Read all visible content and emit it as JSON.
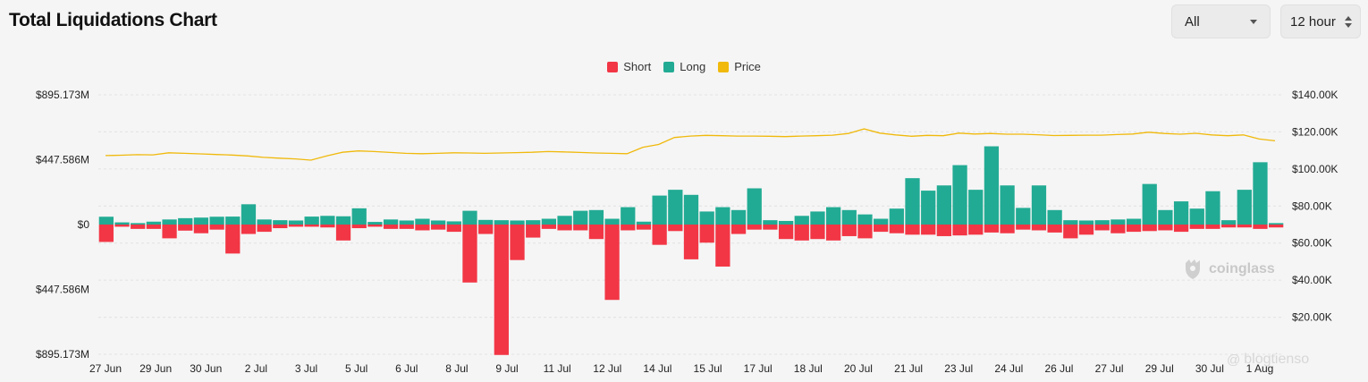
{
  "header": {
    "title": "Total Liquidations Chart"
  },
  "filters": {
    "coin": "All",
    "interval": "12 hour"
  },
  "legend": [
    {
      "label": "Short",
      "color": "#f23645"
    },
    {
      "label": "Long",
      "color": "#22ab94"
    },
    {
      "label": "Price",
      "color": "#f0b90b"
    }
  ],
  "watermark": "coinglass",
  "overlay_text": "blogtienso",
  "chart_data": {
    "type": "bar",
    "title": "Total Liquidations Chart",
    "left_axis": {
      "ticks": [
        "$895.173M",
        "$447.586M",
        "$0",
        "$447.586M",
        "$895.173M"
      ],
      "range": [
        -895.173,
        895.173
      ],
      "unit": "$M"
    },
    "right_axis": {
      "ticks": [
        "$140.00K",
        "$120.00K",
        "$100.00K",
        "$80.00K",
        "$60.00K",
        "$40.00K",
        "$20.00K"
      ],
      "range": [
        0,
        140000
      ]
    },
    "x_tick_labels": [
      "27 Jun",
      "29 Jun",
      "30 Jun",
      "2 Jul",
      "3 Jul",
      "5 Jul",
      "6 Jul",
      "8 Jul",
      "9 Jul",
      "11 Jul",
      "12 Jul",
      "14 Jul",
      "15 Jul",
      "17 Jul",
      "18 Jul",
      "20 Jul",
      "21 Jul",
      "23 Jul",
      "24 Jul",
      "26 Jul",
      "27 Jul",
      "29 Jul",
      "30 Jul",
      "1 Aug"
    ],
    "series": [
      {
        "name": "Long",
        "values": [
          54,
          15,
          10,
          20,
          35,
          44,
          48,
          54,
          55,
          140,
          35,
          30,
          28,
          55,
          60,
          57,
          112,
          18,
          35,
          28,
          40,
          28,
          22,
          95,
          32,
          30,
          28,
          30,
          40,
          60,
          95,
          100,
          40,
          120,
          20,
          200,
          240,
          205,
          90,
          120,
          100,
          250,
          30,
          25,
          60,
          90,
          120,
          100,
          70,
          40,
          110,
          320,
          234,
          270,
          410,
          240,
          540,
          270,
          115,
          270,
          100,
          30,
          28,
          30,
          35,
          40,
          280,
          100,
          160,
          110,
          230,
          30,
          240,
          430,
          10
        ]
      },
      {
        "name": "Short",
        "values": [
          120,
          15,
          30,
          30,
          95,
          42,
          60,
          35,
          200,
          65,
          50,
          25,
          15,
          15,
          20,
          110,
          25,
          15,
          30,
          30,
          40,
          35,
          50,
          400,
          65,
          900,
          245,
          90,
          30,
          40,
          40,
          100,
          520,
          40,
          35,
          140,
          45,
          240,
          125,
          290,
          65,
          35,
          35,
          100,
          110,
          100,
          110,
          80,
          95,
          50,
          60,
          70,
          70,
          80,
          75,
          70,
          55,
          60,
          35,
          40,
          55,
          95,
          70,
          40,
          60,
          50,
          45,
          40,
          50,
          30,
          30,
          20,
          20,
          30,
          20
        ]
      },
      {
        "name": "Price",
        "values": [
          107000,
          107200,
          107500,
          107400,
          108500,
          108200,
          107900,
          107600,
          107300,
          106800,
          106000,
          105600,
          105200,
          104500,
          106800,
          108800,
          109500,
          109200,
          108700,
          108200,
          108000,
          108200,
          108500,
          108400,
          108200,
          108400,
          108600,
          108800,
          109200,
          109000,
          108700,
          108400,
          108200,
          108000,
          111500,
          113000,
          116800,
          117600,
          118000,
          117800,
          117600,
          117600,
          117500,
          117300,
          117600,
          117800,
          118100,
          119000,
          121500,
          119200,
          118200,
          117500,
          118000,
          117800,
          119200,
          118700,
          119000,
          118600,
          118600,
          118300,
          117900,
          118000,
          118100,
          118100,
          118400,
          118700,
          119700,
          119000,
          118600,
          119100,
          118200,
          117800,
          118200,
          116000,
          115000
        ]
      }
    ]
  }
}
